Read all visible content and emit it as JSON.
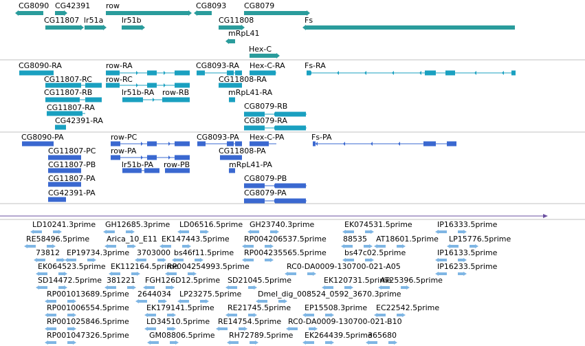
{
  "genes_track": {
    "labels": [
      "CG8090",
      "CG42391",
      "row",
      "CG8093",
      "CG8079",
      "CG11807",
      "lr51a",
      "lr51b",
      "CG11808",
      "Fs",
      "mRpL41",
      "Hex-C"
    ],
    "color": "#2a9c9c"
  },
  "transcripts_track": {
    "labels": [
      "CG8090-RA",
      "row-RA",
      "CG8093-RA",
      "Hex-C-RA",
      "Fs-RA",
      "CG11807-RC",
      "row-RC",
      "CG11808-RA",
      "CG11807-RB",
      "lr51b-RA",
      "row-RB",
      "mRpL41-RA",
      "CG11807-RA",
      "CG8079-RB",
      "CG42391-RA",
      "CG8079-RA"
    ],
    "color": "#1aa0c0"
  },
  "proteins_track": {
    "labels": [
      "CG8090-PA",
      "row-PC",
      "CG8093-PA",
      "Hex-C-PA",
      "Fs-PA",
      "CG11807-PC",
      "row-PA",
      "CG11808-PA",
      "CG11807-PB",
      "lr51b-PA",
      "row-PB",
      "mRpL41-PA",
      "CG11807-PA",
      "CG8079-PB",
      "CG42391-PA",
      "CG8079-PA"
    ],
    "color": "#3a68d0"
  },
  "ruler": {
    "color": "#6a4fa0"
  },
  "est_track": {
    "labels": [
      "LD10241.3prime",
      "GH12685.3prime",
      "LD06516.5prime",
      "GH23740.3prime",
      "EK074531.5prime",
      "IP16333.5prime",
      "RE58496.5prime",
      "Arica_10_E11",
      "EK147443.5prime",
      "RP004206537.5prime",
      "88535",
      "AT18601.5prime",
      "LP15776.5prime",
      "73812",
      "EP19734.3prime",
      "3703000",
      "bs46f11.5prime",
      "RP004235565.5prime",
      "bs47c02.5prime",
      "IP16133.5prime",
      "EK064523.5prime",
      "EK112164.5prime",
      "RP004254993.5prime",
      "RC0-DA0009-130700-021-A05",
      "IP16233.5prime",
      "SD14472.5prime",
      "381221",
      "FGH126D12.5prime",
      "SD21045.5prime",
      "EK120731.5prime",
      "AT25396.5prime",
      "RP001013689.5prime",
      "2644034",
      "LP23275.5prime",
      "Dmel_dig_008524_0592_3670.3prime",
      "RP001006554.5prime",
      "EK179141.5prime",
      "RE21745.5prime",
      "EP15508.3prime",
      "EC22542.5prime",
      "RP001025846.5prime",
      "LD34510.5prime",
      "RE14754.5prime",
      "RC0-DA0009-130700-021-B10",
      "RP001047326.5prime",
      "GM08806.5prime",
      "RH72789.5prime",
      "EK264439.5prime",
      "365680"
    ],
    "color": "#7fb6e4"
  }
}
